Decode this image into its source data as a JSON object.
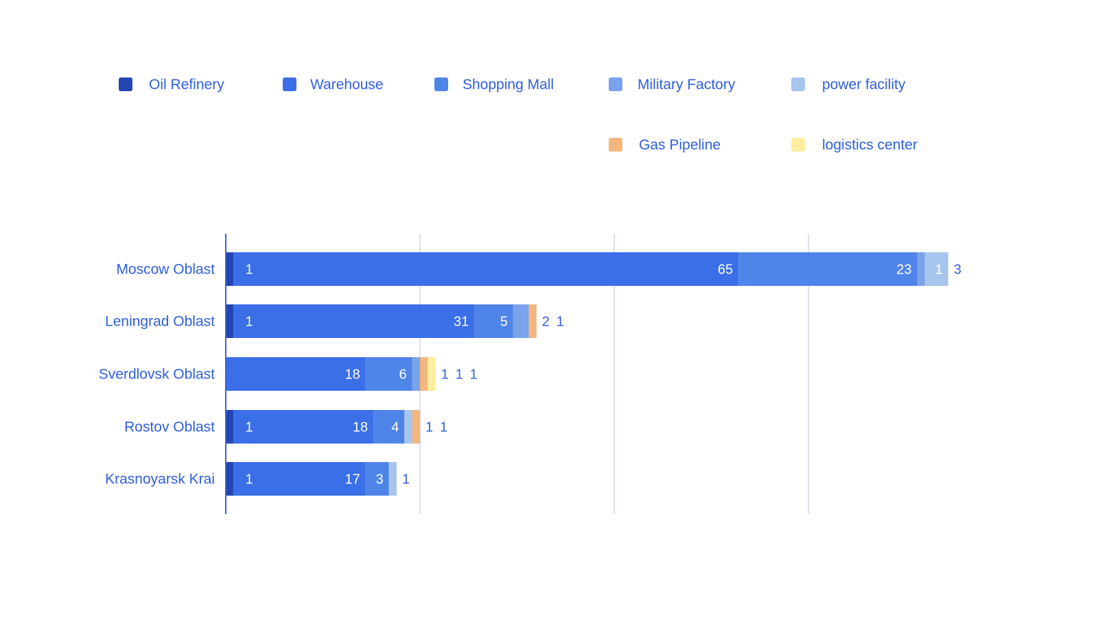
{
  "chart_data": {
    "type": "bar",
    "orientation": "horizontal",
    "stacked": true,
    "title": "",
    "xlabel": "",
    "ylabel": "",
    "xlim": [
      0,
      100
    ],
    "grid_values": [
      25,
      50,
      75
    ],
    "grid": true,
    "legend_position": "top",
    "categories": [
      "Moscow Oblast",
      "Leningrad Oblast",
      "Sverdlovsk Oblast",
      "Rostov Oblast",
      "Krasnoyarsk Krai"
    ],
    "series": [
      {
        "name": "Oil Refinery",
        "color": "#2347b0",
        "values": [
          1,
          1,
          0,
          1,
          1
        ]
      },
      {
        "name": "Warehouse",
        "color": "#3a6fe8",
        "values": [
          65,
          31,
          18,
          18,
          17
        ]
      },
      {
        "name": "Shopping Mall",
        "color": "#4f84e8",
        "values": [
          23,
          5,
          6,
          4,
          3
        ]
      },
      {
        "name": "Military Factory",
        "color": "#79a3ea",
        "values": [
          1,
          2,
          1,
          0,
          0
        ]
      },
      {
        "name": "power facility",
        "color": "#a8c5ed",
        "values": [
          3,
          0,
          0,
          1,
          1
        ]
      },
      {
        "name": "Gas Pipeline",
        "color": "#f3b67d",
        "values": [
          0,
          1,
          1,
          1,
          0
        ]
      },
      {
        "name": "logistics center",
        "color": "#fdeea0",
        "values": [
          0,
          0,
          1,
          0,
          0
        ]
      }
    ]
  }
}
